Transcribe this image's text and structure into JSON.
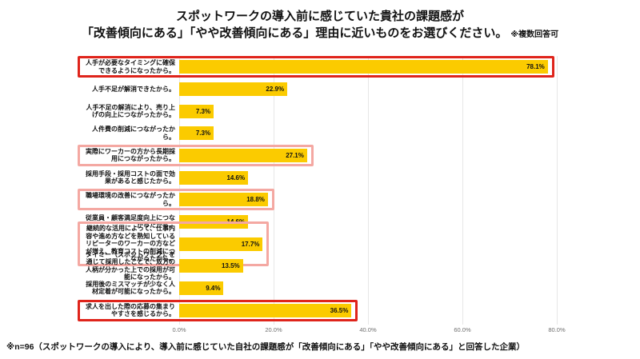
{
  "title": {
    "line1": "スポットワークの導入前に感じていた貴社の課題感が",
    "line2": "「改善傾向にある」「やや改善傾向にある」理由に近いものをお選びください。",
    "note": "※複数回答可"
  },
  "footnote": "※n=96（スポットワークの導入により、導入前に感じていた自社の課題感が「改善傾向にある」「やや改善傾向にある」と回答した企業）",
  "colors": {
    "bar": "#FBCB00",
    "highlight_strong": "#DF241B",
    "highlight_soft": "#F4A8A2",
    "grid": "#E7E7E7",
    "tick_text": "#6E6E6E"
  },
  "chart_data": {
    "type": "bar",
    "orientation": "horizontal",
    "title": "スポットワークの導入前に感じていた貴社の課題感が「改善傾向にある」「やや改善傾向にある」理由に近いものをお選びください。",
    "note": "※複数回答可",
    "xlim": [
      0,
      93
    ],
    "grid": true,
    "tick_labels": [
      "0.0%",
      "20.0%",
      "40.0%",
      "60.0%",
      "80.0%"
    ],
    "tick_values": [
      0,
      20,
      40,
      60,
      80
    ],
    "categories": [
      "人手が必要なタイミングに確保できるようになったから。",
      "人手不足が解消できたから。",
      "人手不足の解消により、売り上げの向上につながったから。",
      "人件費の削減につながったから。",
      "実際にワーカーの方から長期採用につながったから。",
      "採用手段・採用コストの面で効果があると感じたから。",
      "職場環境の改善につながったから。",
      "従業員・顧客満足度向上につながったから。",
      "継続的な活用によって、仕事内容や進め方などを熟知しているリピーターのワーカーの方などが増え、教育コストの削減につながったから。",
      "タイミー（スポットワーク）を通じて採用したことで、双方の人柄が分かった上での採用が可能になったから。",
      "採用後のミスマッチが少なく人材定着が可能になったから。",
      "求人を出した際の応募の集まりやすさを感じるから。"
    ],
    "values": [
      78.1,
      22.9,
      7.3,
      7.3,
      27.1,
      14.6,
      18.8,
      14.6,
      17.7,
      13.5,
      9.4,
      36.5
    ],
    "value_labels": [
      "78.1%",
      "22.9%",
      "7.3%",
      "7.3%",
      "27.1%",
      "14.6%",
      "18.8%",
      "14.6%",
      "17.7%",
      "13.5%",
      "9.4%",
      "36.5%"
    ],
    "highlights": [
      "strong",
      null,
      null,
      null,
      "soft",
      null,
      "soft",
      null,
      "soft",
      null,
      null,
      "strong"
    ]
  }
}
